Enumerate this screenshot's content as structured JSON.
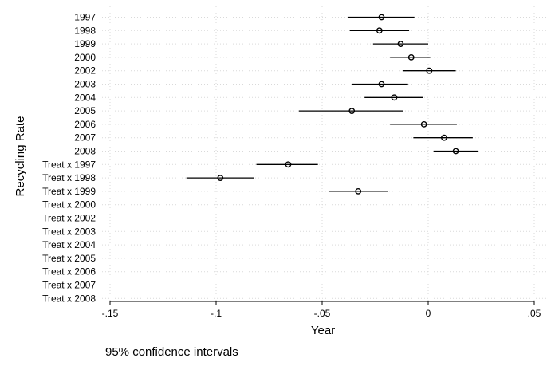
{
  "chart_data": {
    "type": "scatter",
    "orientation": "horizontal",
    "xlabel": "Year",
    "ylabel": "Recycling Rate",
    "note": "95% confidence intervals",
    "xlim": [
      -0.15,
      0.05
    ],
    "x_ticks": [
      -0.15,
      -0.1,
      -0.05,
      0,
      0.05
    ],
    "x_tick_labels": [
      "-.15",
      "-.1",
      "-.05",
      "0",
      ".05"
    ],
    "grid": true,
    "categories": [
      "1997",
      "1998",
      "1999",
      "2000",
      "2002",
      "2003",
      "2004",
      "2005",
      "2006",
      "2007",
      "2008",
      "Treat x 1997",
      "Treat x 1998",
      "Treat x 1999",
      "Treat x 2000",
      "Treat x 2002",
      "Treat x 2003",
      "Treat x 2004",
      "Treat x 2005",
      "Treat x 2006",
      "Treat x 2007",
      "Treat x 2008"
    ],
    "estimates": [
      -0.022,
      -0.023,
      -0.013,
      -0.008,
      0.0005,
      -0.022,
      -0.016,
      -0.036,
      -0.002,
      0.0075,
      0.013,
      -0.066,
      -0.098,
      -0.033,
      null,
      null,
      null,
      null,
      null,
      null,
      null,
      null
    ],
    "ci_low": [
      -0.038,
      -0.037,
      -0.026,
      -0.018,
      -0.012,
      -0.036,
      -0.03,
      -0.061,
      -0.018,
      -0.007,
      0.0025,
      -0.081,
      -0.114,
      -0.047,
      null,
      null,
      null,
      null,
      null,
      null,
      null,
      null
    ],
    "ci_high": [
      -0.0065,
      -0.009,
      0.0,
      0.001,
      0.013,
      -0.0095,
      -0.0025,
      -0.012,
      0.0135,
      0.021,
      0.0235,
      -0.052,
      -0.082,
      -0.019,
      null,
      null,
      null,
      null,
      null,
      null,
      null,
      null
    ]
  }
}
